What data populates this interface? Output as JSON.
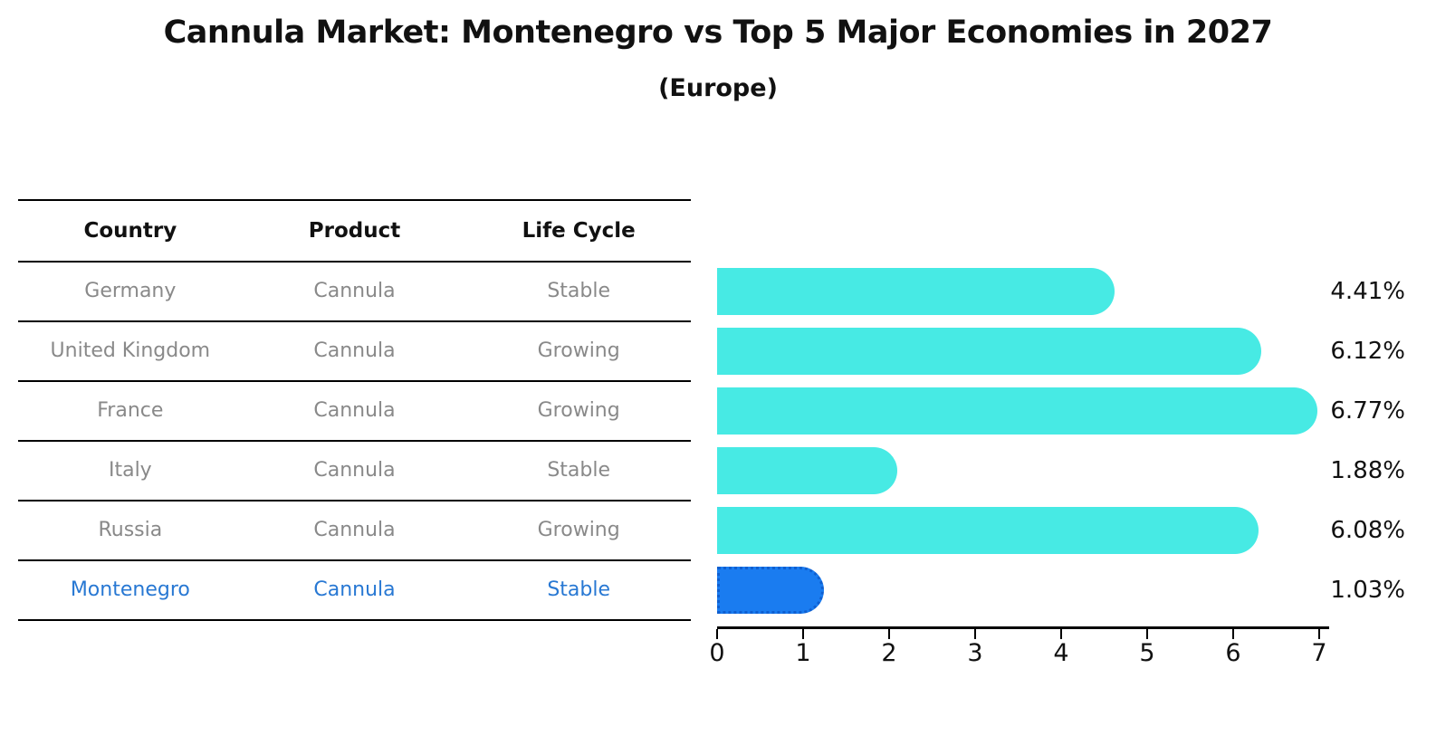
{
  "title": "Cannula Market: Montenegro vs Top 5 Major Economies in 2027",
  "subtitle": "(Europe)",
  "table": {
    "headers": [
      "Country",
      "Product",
      "Life Cycle"
    ],
    "rows": [
      {
        "country": "Germany",
        "product": "Cannula",
        "life_cycle": "Stable",
        "highlight": false
      },
      {
        "country": "United Kingdom",
        "product": "Cannula",
        "life_cycle": "Growing",
        "highlight": false
      },
      {
        "country": "France",
        "product": "Cannula",
        "life_cycle": "Growing",
        "highlight": false
      },
      {
        "country": "Italy",
        "product": "Cannula",
        "life_cycle": "Stable",
        "highlight": false
      },
      {
        "country": "Russia",
        "product": "Cannula",
        "life_cycle": "Growing",
        "highlight": false
      },
      {
        "country": "Montenegro",
        "product": "Cannula",
        "life_cycle": "Stable",
        "highlight": true
      }
    ]
  },
  "chart_data": {
    "type": "bar",
    "orientation": "horizontal",
    "title": "Cannula Market: Montenegro vs Top 5 Major Economies in 2027",
    "subtitle": "(Europe)",
    "categories": [
      "Germany",
      "United Kingdom",
      "France",
      "Italy",
      "Russia",
      "Montenegro"
    ],
    "values": [
      4.41,
      6.12,
      6.77,
      1.88,
      6.08,
      1.03
    ],
    "value_labels": [
      "4.41%",
      "6.12%",
      "6.77%",
      "1.88%",
      "6.08%",
      "1.03%"
    ],
    "highlight_category": "Montenegro",
    "xlabel": "",
    "ylabel": "",
    "xlim": [
      0,
      7
    ],
    "x_ticks": [
      "0",
      "1",
      "2",
      "3",
      "4",
      "5",
      "6",
      "7"
    ],
    "grid": false,
    "legend": false,
    "colors": {
      "bar": "#47EAE4",
      "highlight_bar": "#1A7CF0",
      "highlight_bar_border": "#0F5FD0",
      "row_text": "#898989",
      "highlight_text": "#2878D3",
      "header_text": "#111111",
      "value_label_text": "#111111",
      "axis": "#000000",
      "background": "#FFFFFF"
    }
  }
}
